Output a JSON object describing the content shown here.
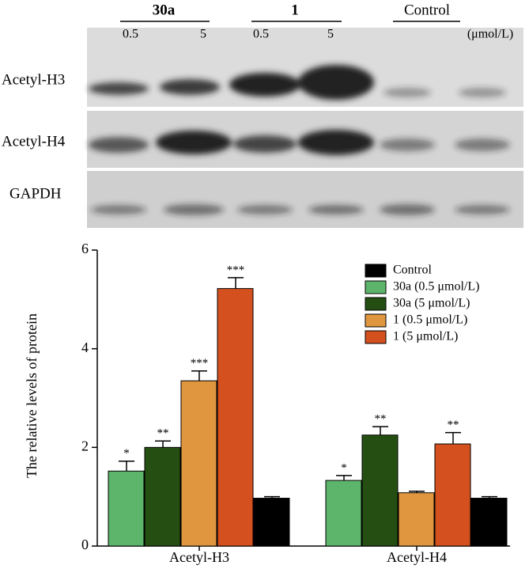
{
  "blot": {
    "groups": [
      "30a",
      "1",
      "Control"
    ],
    "doses": [
      "0.5",
      "5",
      "0.5",
      "5"
    ],
    "unit": "(μmol/L)",
    "rows": [
      "Acetyl-H3",
      "Acetyl-H4",
      "GAPDH"
    ]
  },
  "chart_data": {
    "type": "bar",
    "y_label": "The  relative levels of protein",
    "categories": [
      "Acetyl-H3",
      "Acetyl-H4"
    ],
    "ylim": [
      0,
      6
    ],
    "yticks": [
      0,
      2,
      4,
      6
    ],
    "series": [
      {
        "name": "Control",
        "color": "#000000",
        "values": [
          0.97,
          0.97
        ],
        "errors": [
          0.03,
          0.03
        ],
        "annotations": [
          null,
          null
        ]
      },
      {
        "name": "30a (0.5 μmol/L)",
        "color": "#5cb56b",
        "values": [
          1.52,
          1.33
        ],
        "errors": [
          0.2,
          0.1
        ],
        "annotations": [
          "*",
          "*"
        ]
      },
      {
        "name": "30a (5 μmol/L)",
        "color": "#254f12",
        "values": [
          2.0,
          2.25
        ],
        "errors": [
          0.13,
          0.17
        ],
        "annotations": [
          "**",
          "**"
        ]
      },
      {
        "name": "1 (0.5 μmol/L)",
        "color": "#e0963f",
        "values": [
          3.35,
          1.08
        ],
        "errors": [
          0.2,
          0.03
        ],
        "annotations": [
          "***",
          null
        ]
      },
      {
        "name": "1 (5 μmol/L)",
        "color": "#d4511f",
        "values": [
          5.22,
          2.07
        ],
        "errors": [
          0.22,
          0.23
        ],
        "annotations": [
          "***",
          "**"
        ]
      }
    ]
  }
}
